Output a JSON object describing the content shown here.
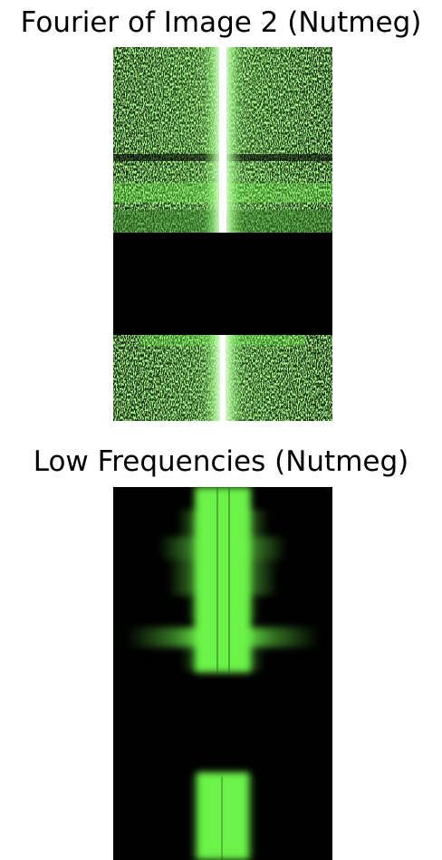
{
  "figures": [
    {
      "title": "Fourier of Image 2 (Nutmeg)"
    },
    {
      "title": "Low Frequencies (Nutmeg)"
    }
  ],
  "colors": {
    "background": "#ffffff",
    "panel_background": "#000000",
    "spectrum_green": "#6cf24a",
    "center_line": "#ffffff"
  }
}
